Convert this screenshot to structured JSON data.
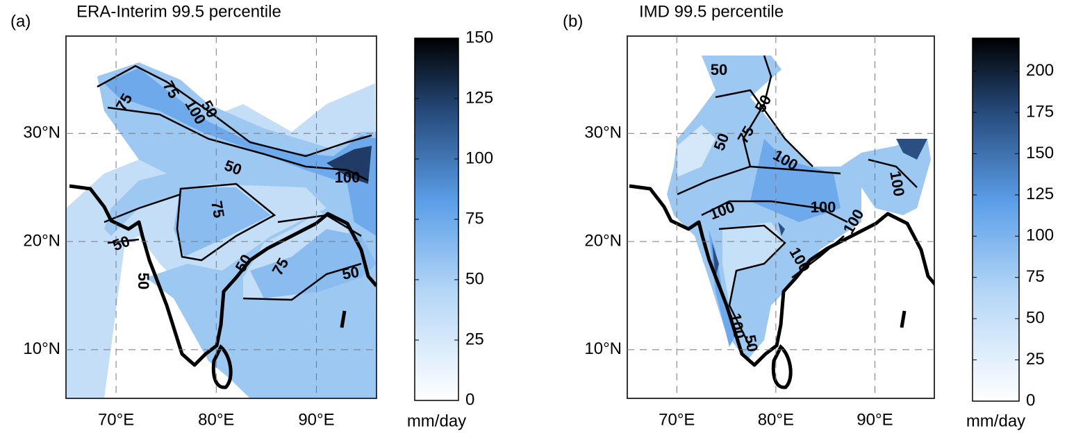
{
  "panels": [
    {
      "label": "(a)",
      "title": "ERA-Interim 99.5 percentile",
      "xlim": [
        65,
        96
      ],
      "ylim": [
        5.5,
        39
      ],
      "xticks": [
        {
          "value": 70,
          "label": "70°E"
        },
        {
          "value": 80,
          "label": "80°E"
        },
        {
          "value": 90,
          "label": "90°E"
        }
      ],
      "yticks": [
        {
          "value": 10,
          "label": "10°N"
        },
        {
          "value": 20,
          "label": "20°N"
        },
        {
          "value": 30,
          "label": "30°N"
        }
      ],
      "colorbar": {
        "lim": [
          0,
          150
        ],
        "ticks": [
          0,
          25,
          50,
          75,
          100,
          125,
          150
        ],
        "label": "mm/day"
      },
      "contour_labels": [
        75,
        75,
        100,
        50,
        50,
        100,
        75,
        50,
        50,
        75,
        50,
        50
      ]
    },
    {
      "label": "(b)",
      "title": "IMD 99.5 percentile",
      "xlim": [
        65,
        96
      ],
      "ylim": [
        5.5,
        39
      ],
      "xticks": [
        {
          "value": 70,
          "label": "70°E"
        },
        {
          "value": 80,
          "label": "80°E"
        },
        {
          "value": 90,
          "label": "90°E"
        }
      ],
      "yticks": [
        {
          "value": 10,
          "label": "10°N"
        },
        {
          "value": 20,
          "label": "20°N"
        },
        {
          "value": 30,
          "label": "30°N"
        }
      ],
      "colorbar": {
        "lim": [
          0,
          220
        ],
        "ticks": [
          0,
          25,
          50,
          75,
          100,
          125,
          150,
          175,
          200
        ],
        "label": "mm/day"
      },
      "contour_labels": [
        50,
        50,
        50,
        75,
        100,
        100,
        100,
        100,
        100,
        100,
        50,
        100
      ]
    }
  ]
}
